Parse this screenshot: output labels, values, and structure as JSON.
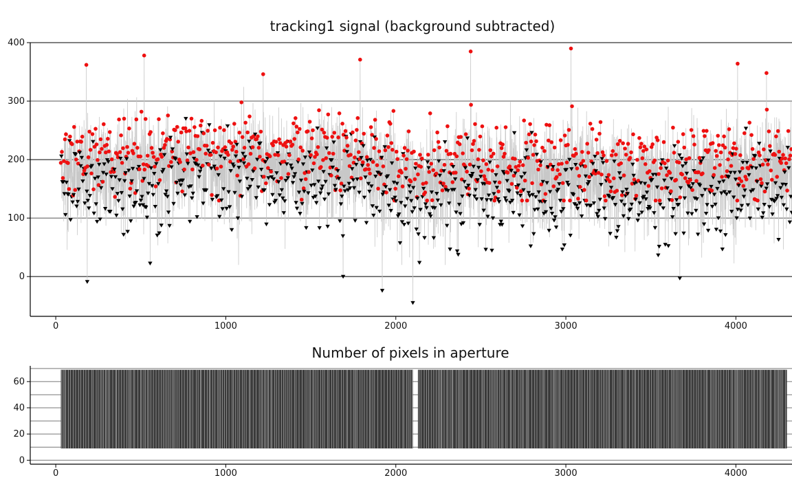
{
  "chart_data": [
    {
      "type": "scatter",
      "title": "tracking1 signal (background subtracted)",
      "xlabel": "",
      "ylabel": "",
      "xlim": [
        -150,
        4330
      ],
      "ylim": [
        -68,
        400
      ],
      "xticks": [
        0,
        1000,
        2000,
        3000,
        4000
      ],
      "yticks": [
        0,
        100,
        200,
        300,
        400
      ],
      "grid": "horizontal",
      "n_points": 4300,
      "series": [
        {
          "marker": "circle",
          "color": "#ee1111",
          "mean": 205,
          "sd": 40,
          "ymax": 390,
          "description": "higher samples"
        },
        {
          "marker": "triangle-down",
          "color": "#000000",
          "mean": 150,
          "sd": 40,
          "ymin": -47,
          "description": "lower samples"
        }
      ],
      "connector_color": "#c8c8c8",
      "notable_values": [
        {
          "x": 180,
          "y": 362
        },
        {
          "x": 520,
          "y": 378
        },
        {
          "x": 1220,
          "y": 346
        },
        {
          "x": 1790,
          "y": 371
        },
        {
          "x": 2440,
          "y": 385
        },
        {
          "x": 3030,
          "y": 390
        },
        {
          "x": 4010,
          "y": 364
        },
        {
          "x": 4180,
          "y": 348
        },
        {
          "x": 185,
          "y": -9
        },
        {
          "x": 1690,
          "y": 0
        },
        {
          "x": 1920,
          "y": -24
        },
        {
          "x": 2100,
          "y": -45
        },
        {
          "x": 3670,
          "y": -3
        }
      ]
    },
    {
      "type": "bar",
      "title": "Number of pixels in aperture",
      "xlabel": "",
      "ylabel": "",
      "xlim": [
        -150,
        4330
      ],
      "ylim": [
        -3,
        72
      ],
      "xticks": [
        0,
        1000,
        2000,
        3000,
        4000
      ],
      "yticks": [
        0,
        20,
        40,
        60
      ],
      "grid": "horizontal",
      "color": "#3a3a3a",
      "low_value": 9,
      "high_value": 69,
      "x_range": [
        30,
        4300
      ],
      "gaps": [
        [
          2100,
          2130
        ]
      ]
    }
  ]
}
